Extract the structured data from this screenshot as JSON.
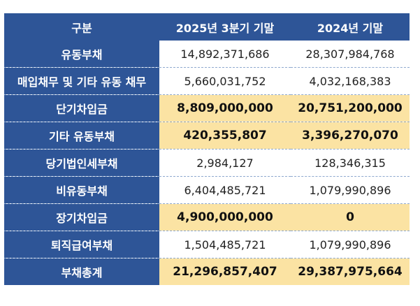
{
  "table": {
    "headers": [
      "구분",
      "2025년 3분기 기말",
      "2024년 기말"
    ],
    "rows": [
      {
        "label": "유동부채",
        "v2025q3": "14,892,371,686",
        "v2024": "28,307,984,768",
        "highlight": false
      },
      {
        "label": "매입채무 및 기타 유동 채무",
        "v2025q3": "5,660,031,752",
        "v2024": "4,032,168,383",
        "highlight": false
      },
      {
        "label": "단기차입금",
        "v2025q3": "8,809,000,000",
        "v2024": "20,751,200,000",
        "highlight": true
      },
      {
        "label": "기타 유동부채",
        "v2025q3": "420,355,807",
        "v2024": "3,396,270,070",
        "highlight": true
      },
      {
        "label": "당기법인세부채",
        "v2025q3": "2,984,127",
        "v2024": "128,346,315",
        "highlight": false
      },
      {
        "label": "비유동부채",
        "v2025q3": "6,404,485,721",
        "v2024": "1,079,990,896",
        "highlight": false
      },
      {
        "label": "장기차입금",
        "v2025q3": "4,900,000,000",
        "v2024": "0",
        "highlight": true
      },
      {
        "label": "퇴직급여부채",
        "v2025q3": "1,504,485,721",
        "v2024": "1,079,990,896",
        "highlight": false
      },
      {
        "label": "부채총계",
        "v2025q3": "21,296,857,407",
        "v2024": "29,387,975,664",
        "highlight": true
      }
    ]
  },
  "colors": {
    "header_bg": "#2e5597",
    "header_text": "#ffffff",
    "highlight_bg": "#fbe3a3",
    "row_bg": "#ffffff",
    "row_divider": "#8ea9cf"
  }
}
